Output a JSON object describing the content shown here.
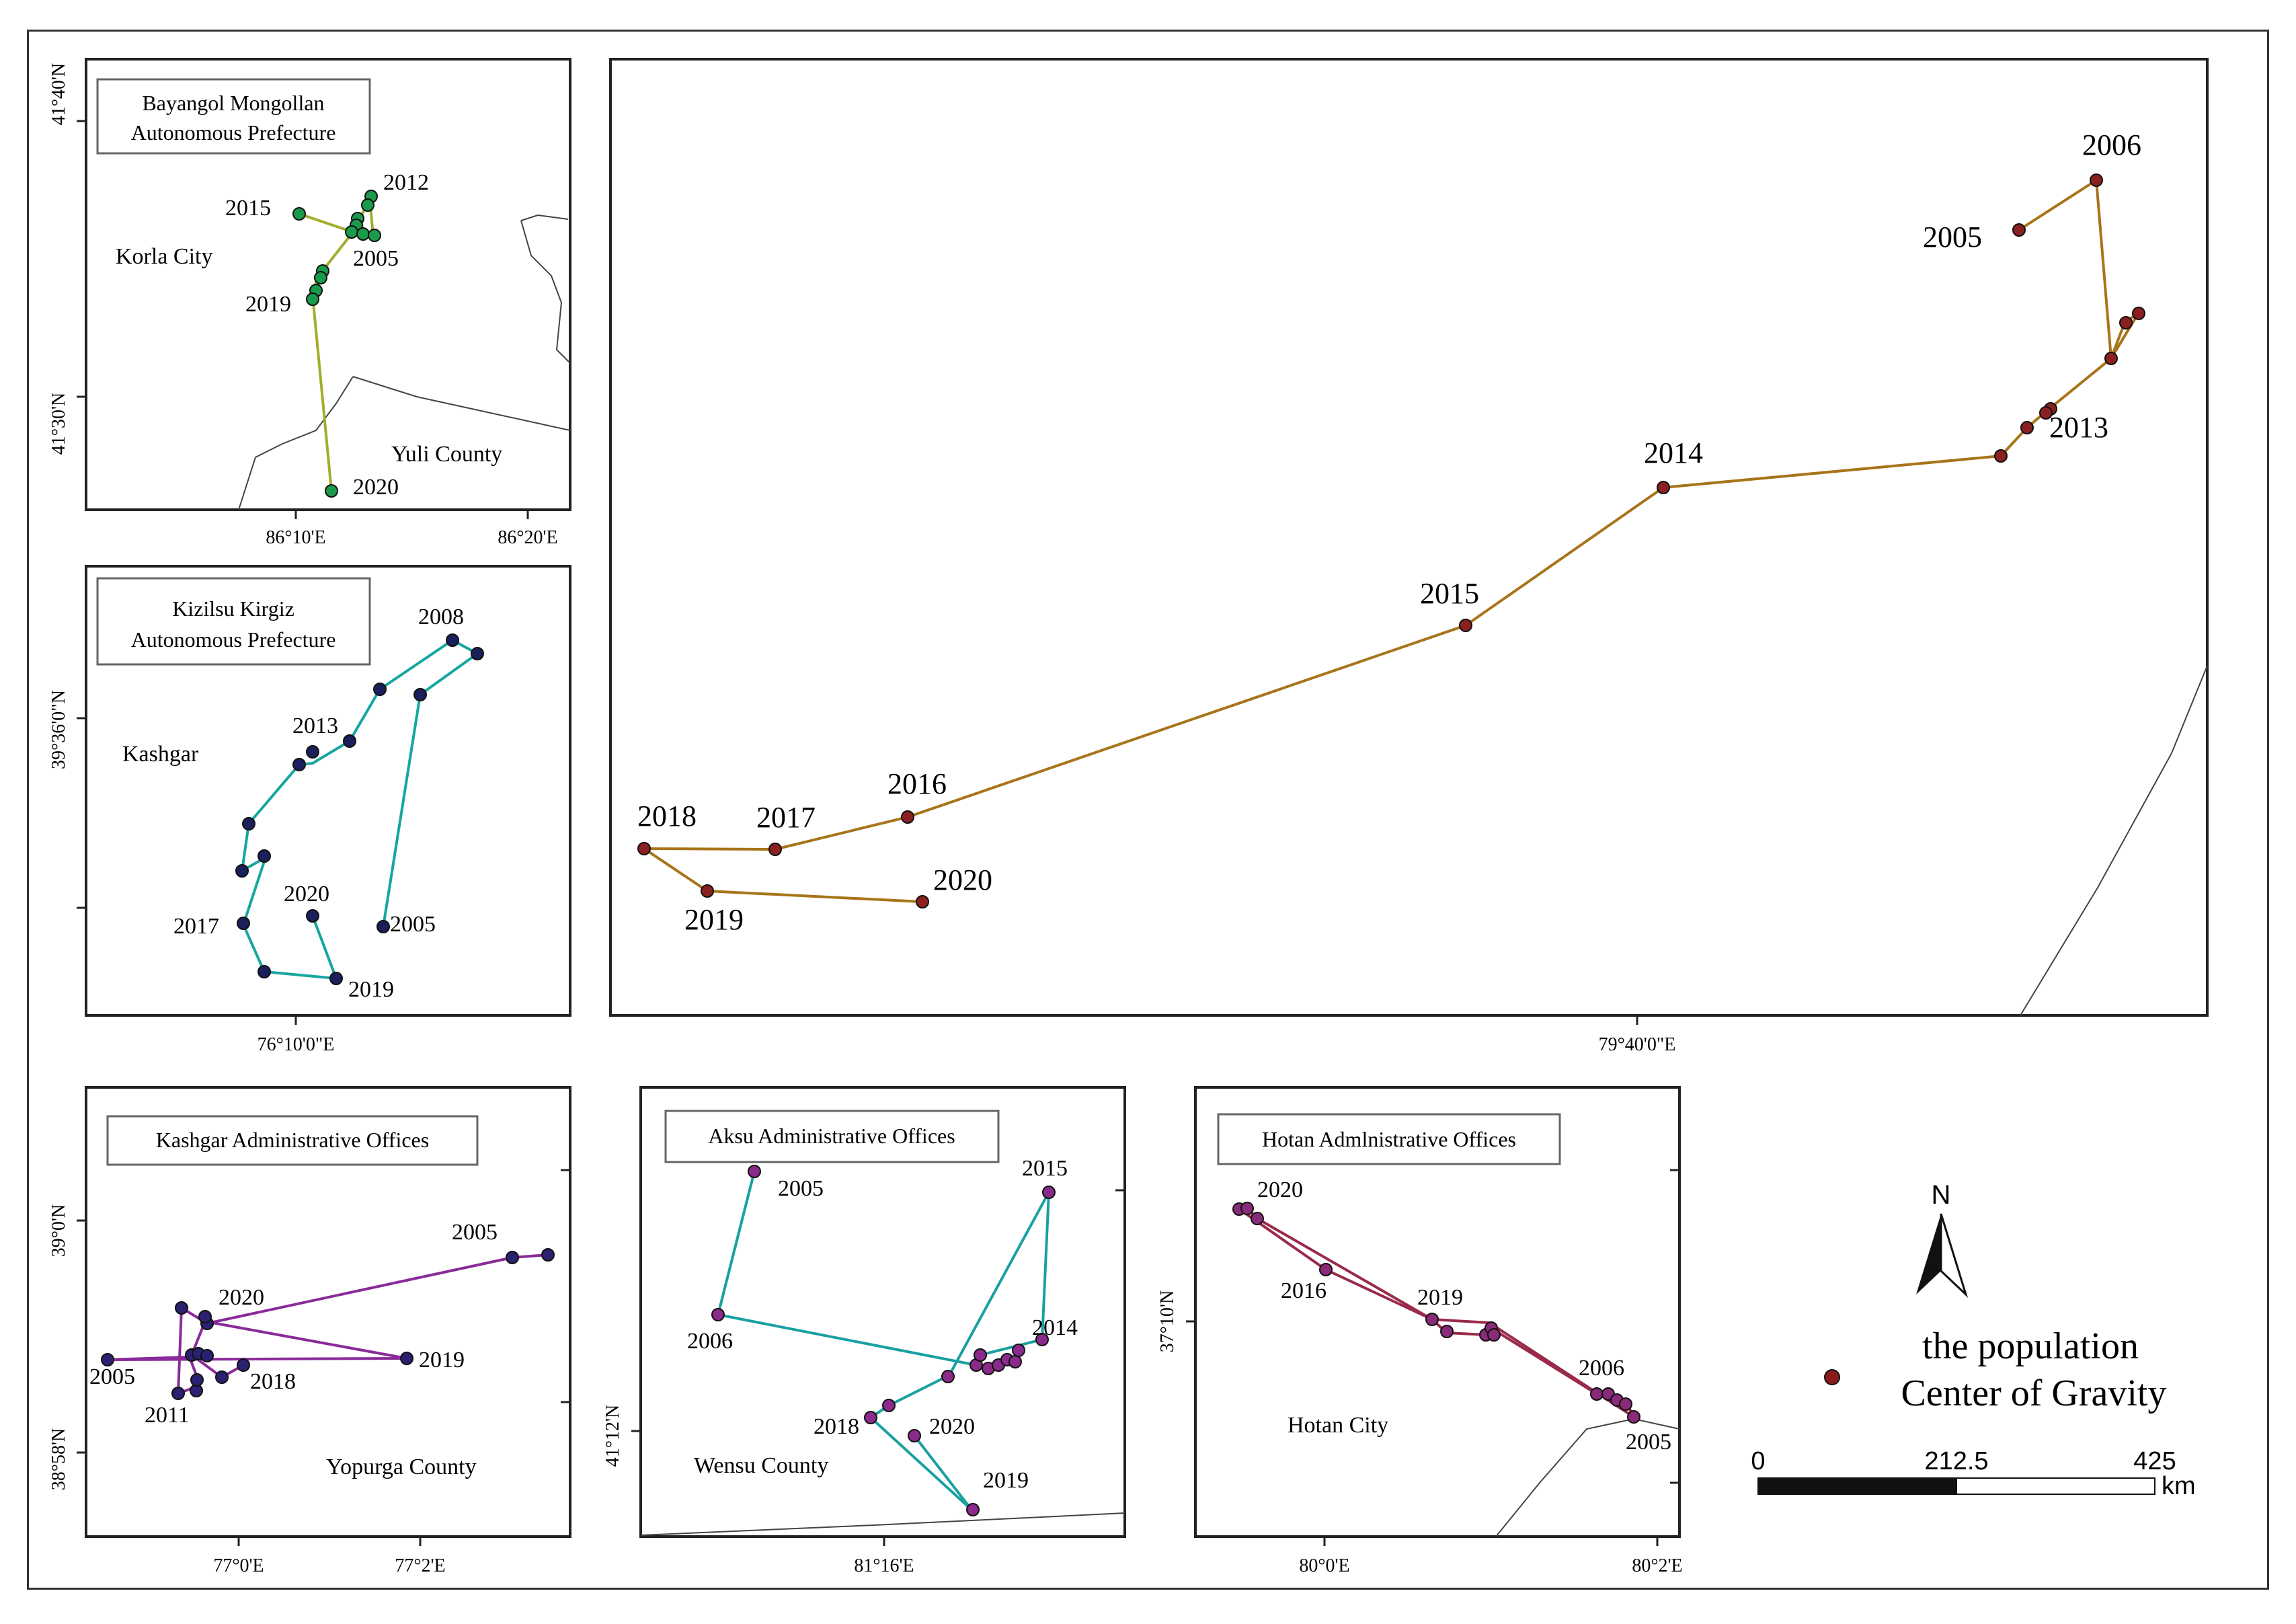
{
  "colors": {
    "bayangol": "#1a9a4a",
    "bayangol_line": "#a4ad2c",
    "kizilsu": "#1b1f5c",
    "kizilsu_line": "#16a6a0",
    "kashgar": "#2a2270",
    "kashgar_line": "#8a2a9a",
    "aksu": "#8a2a8a",
    "aksu_line": "#1aa0a0",
    "hotan": "#8a2a7a",
    "hotan_line": "#9a2a4a",
    "main": "#8a2020",
    "main_line": "#a8741a",
    "legend_dot": "#8b1a1a"
  },
  "panels": {
    "bayangol": {
      "title_line1": "Bayangol Mongollan",
      "title_line2": "Autonomous Prefecture",
      "places": [
        "Korla City",
        "Yuli County"
      ],
      "x_ticks": [
        "86°10'E",
        "86°20'E"
      ],
      "y_ticks": [
        "41°40'N",
        "41°30'N"
      ],
      "year_labels": [
        "2012",
        "2015",
        "2005",
        "2019",
        "2020"
      ]
    },
    "kizilsu": {
      "title_line1": "Kizilsu Kirgiz",
      "title_line2": "Autonomous Prefecture",
      "places": [
        "Kashgar"
      ],
      "x_ticks": [
        "76°10'0\"E"
      ],
      "y_ticks": [
        "39°36'0\"N"
      ],
      "year_labels": [
        "2008",
        "2013",
        "2020",
        "2017",
        "2005",
        "2019"
      ]
    },
    "main": {
      "x_ticks": [
        "79°40'0\"E"
      ],
      "year_labels": [
        "2006",
        "2005",
        "2013",
        "2014",
        "2015",
        "2016",
        "2018",
        "2017",
        "2020",
        "2019"
      ]
    },
    "kashgar": {
      "title": "Kashgar Administrative Offices",
      "places": [
        "Yopurga County"
      ],
      "x_ticks": [
        "77°0'E",
        "77°2'E"
      ],
      "y_ticks": [
        "39°0'N",
        "38°58'N"
      ],
      "year_labels": [
        "2005",
        "2020",
        "2019",
        "2005",
        "2018",
        "2011"
      ]
    },
    "aksu": {
      "title": "Aksu Administrative Offices",
      "places": [
        "Wensu County"
      ],
      "x_ticks": [
        "81°16'E"
      ],
      "y_ticks": [
        "41°12'N"
      ],
      "year_labels": [
        "2005",
        "2015",
        "2014",
        "2006",
        "2018",
        "2020",
        "2019"
      ]
    },
    "hotan": {
      "title": "Hotan Admlnistrative Offices",
      "places": [
        "Hotan City"
      ],
      "x_ticks": [
        "80°0'E",
        "80°2'E"
      ],
      "y_ticks": [
        "37°10'N"
      ],
      "year_labels": [
        "2020",
        "2016",
        "2019",
        "2006",
        "2005"
      ]
    }
  },
  "legend": {
    "north": "N",
    "label_line1": "the population",
    "label_line2": "Center of Gravity",
    "scale_ticks": [
      "0",
      "212.5",
      "425"
    ],
    "scale_unit": "km"
  }
}
